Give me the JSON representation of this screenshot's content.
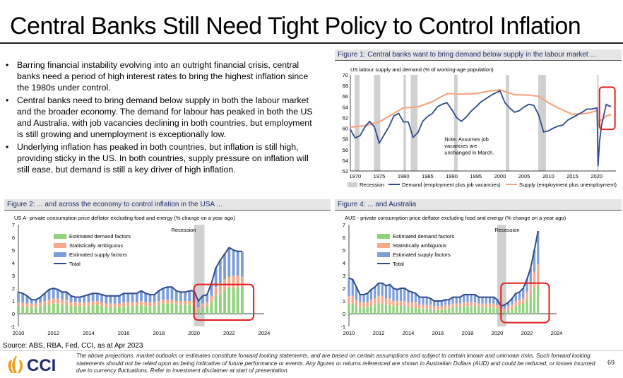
{
  "title": "Central Banks Still Need Tight Policy to Control Inflation",
  "bullets": [
    "Barring financial instability evolving into an outright financial crisis, central banks need a period of high interest rates to bring the highest inflation since the 1980s under control.",
    "Central banks need to bring demand below supply in both the labour market and the broader economy. The demand for labour has peaked in both the US and Australia, with job vacancies declining in both countries, but employment is still growing and unemployment is exceptionally low.",
    "Underlying inflation has peaked in both countries, but inflation is still high, providing sticky in the US. In both countries, supply pressure on inflation will still ease, but demand is still a key driver of high inflation."
  ],
  "bullet_symbol": "•",
  "figures": {
    "fig1": "Figure 1: Central banks want to bring demand below supply in the labour market ...",
    "fig2": "Figure 2: ... and across the economy to control inflation in the USA ...",
    "fig4": "Figure 4: ... and Australia"
  },
  "source": "Source: ABS, RBA, Fed, CCI, as at Apr 2023",
  "logo_text": "CCI",
  "disclaimer": "The above projections, market outlooks or estimates constitute forward looking statements, and are based on certain assumptions and subject to certain known and unknown risks. Such forward looking statements should not be relied upon as being indicative of future performance or events. Any figures or returns referenced are shown in Australian Dollars (AUD) and could be reduced, or losses incurred due to currency fluctuations. Refer to investment disclaimer at start of presentation.",
  "page_number": "69",
  "colors": {
    "demand_line": "#2e4a8c",
    "supply_line": "#f4a582",
    "recession": "#d0d0d0",
    "demand_bar": "#8fd37a",
    "ambiguous_bar": "#f7a98a",
    "supply_bar": "#7d9fd9",
    "highlight": "#e02020",
    "logo": "#f0a020"
  },
  "chart_data": [
    {
      "type": "line",
      "title": "US labour supply and demand (% of working-age population)",
      "x_ticks": [
        1970,
        1975,
        1980,
        1985,
        1990,
        1995,
        2000,
        2005,
        2010,
        2015,
        2020
      ],
      "xlim": [
        1969,
        2024
      ],
      "ylim": [
        52,
        70
      ],
      "y_ticks": [
        52,
        54,
        56,
        58,
        60,
        62,
        64,
        66,
        68,
        70
      ],
      "recessions": [
        [
          1969.9,
          1970.9
        ],
        [
          1973.9,
          1975.2
        ],
        [
          1980.0,
          1980.5
        ],
        [
          1981.5,
          1982.9
        ],
        [
          1990.5,
          1991.2
        ],
        [
          2001.2,
          2001.9
        ],
        [
          2007.9,
          2009.5
        ],
        [
          2020.1,
          2020.4
        ]
      ],
      "annotation": "Note: Assumes job vacancies are unchanged in March.",
      "legend": [
        "Recession",
        "Demand (employment plus job vacancies)",
        "Supply (employment plus unemployment)"
      ],
      "series": [
        {
          "name": "Demand (employment plus job vacancies)",
          "x": [
            1969,
            1970,
            1971,
            1972,
            1973,
            1974,
            1975,
            1976,
            1977,
            1978,
            1979,
            1980,
            1981,
            1982,
            1983,
            1984,
            1985,
            1986,
            1987,
            1988,
            1989,
            1990,
            1991,
            1992,
            1993,
            1994,
            1995,
            1996,
            1997,
            1998,
            1999,
            2000,
            2001,
            2002,
            2003,
            2004,
            2005,
            2006,
            2007,
            2008,
            2009,
            2010,
            2011,
            2012,
            2013,
            2014,
            2015,
            2016,
            2017,
            2018,
            2019,
            2020.1,
            2020.3,
            2020.6,
            2021,
            2021.5,
            2022,
            2022.5,
            2023
          ],
          "values": [
            59.8,
            58.2,
            58.6,
            60.2,
            61.3,
            60.2,
            57.2,
            58.8,
            60.3,
            62.3,
            62.8,
            61.2,
            61.2,
            58.3,
            59.2,
            61.3,
            62.2,
            62.8,
            64.0,
            64.5,
            64.8,
            63.5,
            62.0,
            61.3,
            62.1,
            63.2,
            64.0,
            64.9,
            65.5,
            66.1,
            66.6,
            67.0,
            64.8,
            63.8,
            63.0,
            63.3,
            64.0,
            64.5,
            64.3,
            62.5,
            59.3,
            59.5,
            60.0,
            60.4,
            60.6,
            61.5,
            62.0,
            62.5,
            63.0,
            63.6,
            63.6,
            63.8,
            53.0,
            57.5,
            60.5,
            62.5,
            64.5,
            64.2,
            64.1
          ]
        },
        {
          "name": "Supply (employment plus unemployment)",
          "x": [
            1969,
            1972,
            1975,
            1978,
            1980,
            1983,
            1986,
            1989,
            1992,
            1995,
            1998,
            2000,
            2003,
            2006,
            2008,
            2010,
            2012,
            2015,
            2018,
            2020.1,
            2020.3,
            2020.6,
            2021,
            2022,
            2023
          ],
          "values": [
            60.2,
            60.5,
            61.2,
            62.8,
            63.8,
            64.0,
            65.0,
            66.5,
            66.4,
            66.5,
            67.0,
            67.2,
            66.3,
            66.2,
            66.0,
            64.8,
            63.8,
            62.6,
            62.8,
            63.3,
            60.3,
            61.5,
            61.5,
            62.3,
            62.6
          ]
        }
      ]
    },
    {
      "type": "bar",
      "title": "US A- private consumption price deflator excluding food and energy (% change on a year ago)",
      "x_ticks": [
        2010,
        2012,
        2014,
        2016,
        2018,
        2020,
        2022,
        2024
      ],
      "ylim": [
        -1,
        7
      ],
      "y_ticks": [
        -1,
        0,
        1,
        2,
        3,
        4,
        5,
        6,
        7
      ],
      "recession_label": "Recession",
      "recession": [
        2020.0,
        2020.6
      ],
      "legend": [
        "Estimated demand factors",
        "Statistically ambiguous",
        "Estimated supply factors",
        "Total"
      ],
      "x": [
        2010.0,
        2010.25,
        2010.5,
        2010.75,
        2011.0,
        2011.25,
        2011.5,
        2011.75,
        2012.0,
        2012.25,
        2012.5,
        2012.75,
        2013.0,
        2013.25,
        2013.5,
        2013.75,
        2014.0,
        2014.25,
        2014.5,
        2014.75,
        2015.0,
        2015.25,
        2015.5,
        2015.75,
        2016.0,
        2016.25,
        2016.5,
        2016.75,
        2017.0,
        2017.25,
        2017.5,
        2017.75,
        2018.0,
        2018.25,
        2018.5,
        2018.75,
        2019.0,
        2019.25,
        2019.5,
        2019.75,
        2020.0,
        2020.25,
        2020.5,
        2020.75,
        2021.0,
        2021.25,
        2021.5,
        2021.75,
        2022.0,
        2022.25,
        2022.5,
        2022.75
      ],
      "series": [
        {
          "name": "Estimated demand factors",
          "values": [
            0.6,
            0.6,
            0.5,
            0.5,
            0.5,
            0.6,
            0.7,
            0.7,
            0.8,
            0.8,
            0.7,
            0.7,
            0.6,
            0.6,
            0.6,
            0.6,
            0.6,
            0.7,
            0.7,
            0.6,
            0.5,
            0.5,
            0.5,
            0.5,
            0.6,
            0.6,
            0.6,
            0.6,
            0.7,
            0.6,
            0.6,
            0.6,
            0.7,
            0.8,
            0.8,
            0.8,
            0.7,
            0.7,
            0.7,
            0.7,
            0.6,
            0.3,
            0.5,
            0.6,
            0.9,
            1.4,
            1.6,
            1.8,
            2.0,
            2.1,
            2.1,
            2.0
          ]
        },
        {
          "name": "Statistically ambiguous",
          "values": [
            0.3,
            0.3,
            0.3,
            0.3,
            0.3,
            0.3,
            0.3,
            0.4,
            0.4,
            0.4,
            0.4,
            0.4,
            0.3,
            0.3,
            0.3,
            0.3,
            0.3,
            0.3,
            0.3,
            0.3,
            0.3,
            0.3,
            0.3,
            0.3,
            0.3,
            0.3,
            0.3,
            0.3,
            0.3,
            0.3,
            0.3,
            0.3,
            0.3,
            0.3,
            0.3,
            0.3,
            0.3,
            0.3,
            0.3,
            0.3,
            0.3,
            0.2,
            0.3,
            0.3,
            0.5,
            0.7,
            0.8,
            0.9,
            0.9,
            0.9,
            0.9,
            0.9
          ]
        },
        {
          "name": "Estimated supply factors",
          "values": [
            0.8,
            0.7,
            0.6,
            0.3,
            0.3,
            0.4,
            0.6,
            0.8,
            0.8,
            0.7,
            0.6,
            0.6,
            0.5,
            0.4,
            0.4,
            0.5,
            0.6,
            0.6,
            0.6,
            0.6,
            0.6,
            0.6,
            0.6,
            0.6,
            0.7,
            0.7,
            0.7,
            0.7,
            0.8,
            0.7,
            0.6,
            0.6,
            0.8,
            0.9,
            1.0,
            1.0,
            0.8,
            0.7,
            0.7,
            0.8,
            0.9,
            0.5,
            0.6,
            0.6,
            1.0,
            1.5,
            1.8,
            2.0,
            2.3,
            2.0,
            1.9,
            2.0
          ]
        },
        {
          "name": "Total",
          "values": [
            1.7,
            1.6,
            1.4,
            1.1,
            1.1,
            1.3,
            1.6,
            1.9,
            2.0,
            1.9,
            1.7,
            1.7,
            1.4,
            1.3,
            1.3,
            1.4,
            1.5,
            1.6,
            1.6,
            1.5,
            1.4,
            1.4,
            1.4,
            1.4,
            1.6,
            1.6,
            1.6,
            1.6,
            1.8,
            1.6,
            1.5,
            1.5,
            1.8,
            2.0,
            2.1,
            2.1,
            1.8,
            1.7,
            1.7,
            1.8,
            1.8,
            1.0,
            1.4,
            1.5,
            2.4,
            3.6,
            4.2,
            4.7,
            5.2,
            5.0,
            4.9,
            4.9
          ]
        }
      ]
    },
    {
      "type": "bar",
      "title": "AUS - private consumption price deflator excluding food and energy (% change on a year ago)",
      "x_ticks": [
        2010,
        2012,
        2014,
        2016,
        2018,
        2020,
        2022,
        2024
      ],
      "ylim": [
        -1,
        7
      ],
      "y_ticks": [
        -1,
        0,
        1,
        2,
        3,
        4,
        5,
        6,
        7
      ],
      "recession_label": "Recession",
      "recession": [
        2020.0,
        2020.6
      ],
      "legend": [
        "Estimated demand factors",
        "Statistically ambiguous",
        "Estimated supply factors",
        "Total"
      ],
      "x": [
        2010.0,
        2010.25,
        2010.5,
        2010.75,
        2011.0,
        2011.25,
        2011.5,
        2011.75,
        2012.0,
        2012.25,
        2012.5,
        2012.75,
        2013.0,
        2013.25,
        2013.5,
        2013.75,
        2014.0,
        2014.25,
        2014.5,
        2014.75,
        2015.0,
        2015.25,
        2015.5,
        2015.75,
        2016.0,
        2016.25,
        2016.5,
        2016.75,
        2017.0,
        2017.25,
        2017.5,
        2017.75,
        2018.0,
        2018.25,
        2018.5,
        2018.75,
        2019.0,
        2019.25,
        2019.5,
        2019.75,
        2020.0,
        2020.25,
        2020.5,
        2020.75,
        2021.0,
        2021.25,
        2021.5,
        2021.75,
        2022.0,
        2022.25,
        2022.5,
        2022.75
      ],
      "series": [
        {
          "name": "Estimated demand factors",
          "values": [
            0.8,
            0.8,
            0.6,
            0.5,
            0.5,
            0.5,
            0.6,
            0.7,
            0.8,
            0.8,
            0.7,
            0.7,
            0.6,
            0.6,
            0.6,
            0.6,
            0.5,
            0.5,
            0.5,
            0.4,
            0.4,
            0.4,
            0.4,
            0.3,
            0.3,
            0.3,
            0.4,
            0.4,
            0.5,
            0.5,
            0.5,
            0.6,
            0.6,
            0.6,
            0.6,
            0.5,
            0.5,
            0.5,
            0.5,
            0.5,
            0.4,
            0.2,
            0.2,
            0.3,
            0.4,
            0.6,
            0.7,
            0.8,
            1.1,
            1.5,
            2.0,
            2.2
          ]
        },
        {
          "name": "Statistically ambiguous",
          "values": [
            0.6,
            0.6,
            0.5,
            0.4,
            0.4,
            0.4,
            0.5,
            0.5,
            0.6,
            0.6,
            0.5,
            0.5,
            0.4,
            0.4,
            0.4,
            0.4,
            0.4,
            0.4,
            0.4,
            0.3,
            0.3,
            0.3,
            0.3,
            0.3,
            0.3,
            0.3,
            0.3,
            0.3,
            0.3,
            0.3,
            0.3,
            0.3,
            0.3,
            0.3,
            0.3,
            0.3,
            0.3,
            0.3,
            0.3,
            0.3,
            0.3,
            0.2,
            0.2,
            0.3,
            0.3,
            0.4,
            0.4,
            0.4,
            0.6,
            0.9,
            1.3,
            1.7
          ]
        },
        {
          "name": "Estimated supply factors",
          "values": [
            1.4,
            1.3,
            1.0,
            0.6,
            0.6,
            0.7,
            0.8,
            0.9,
            1.0,
            1.0,
            1.0,
            1.1,
            1.0,
            0.9,
            1.0,
            1.0,
            0.9,
            0.8,
            0.7,
            0.6,
            0.6,
            0.6,
            0.5,
            0.4,
            0.4,
            0.4,
            0.4,
            0.4,
            0.5,
            0.5,
            0.5,
            0.6,
            0.6,
            0.6,
            0.6,
            0.5,
            0.5,
            0.5,
            0.5,
            0.5,
            0.4,
            0.2,
            0.3,
            0.3,
            0.5,
            0.6,
            0.6,
            0.8,
            1.0,
            1.2,
            1.7,
            2.6
          ]
        },
        {
          "name": "Total",
          "values": [
            2.8,
            2.7,
            2.1,
            1.5,
            1.5,
            1.6,
            1.9,
            2.1,
            2.4,
            2.4,
            2.2,
            2.3,
            2.0,
            1.9,
            2.0,
            2.0,
            1.8,
            1.7,
            1.6,
            1.3,
            1.3,
            1.3,
            1.2,
            1.0,
            1.0,
            1.0,
            1.1,
            1.1,
            1.3,
            1.3,
            1.3,
            1.5,
            1.5,
            1.5,
            1.5,
            1.3,
            1.3,
            1.3,
            1.3,
            1.3,
            1.1,
            0.6,
            0.7,
            0.9,
            1.2,
            1.6,
            1.7,
            2.0,
            2.7,
            3.6,
            5.0,
            6.5
          ]
        }
      ]
    }
  ]
}
